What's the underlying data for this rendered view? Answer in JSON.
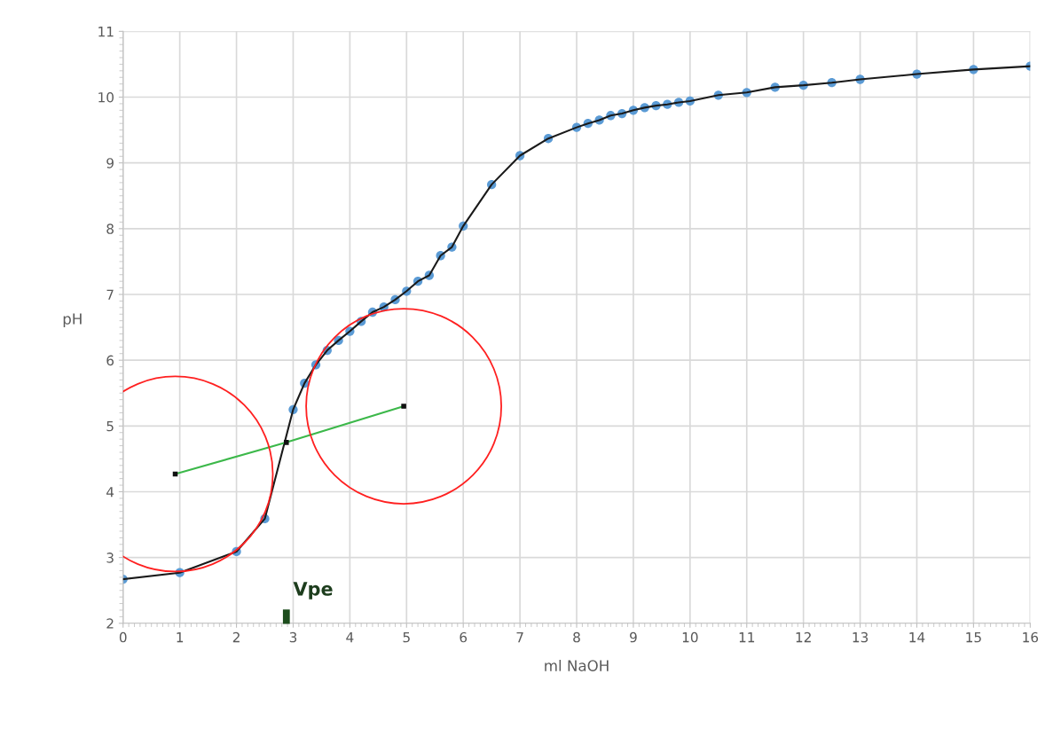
{
  "chart_data": {
    "type": "scatter",
    "xlabel": "ml NaOH",
    "ylabel": "pH",
    "x": [
      0,
      1,
      2,
      2.5,
      3,
      3.2,
      3.4,
      3.6,
      3.8,
      4,
      4.2,
      4.4,
      4.6,
      4.8,
      5,
      5.2,
      5.4,
      5.6,
      5.8,
      6,
      6.5,
      7,
      7.5,
      8,
      8.2,
      8.4,
      8.6,
      8.8,
      9,
      9.2,
      9.4,
      9.6,
      9.8,
      10,
      10.5,
      11,
      11.5,
      12,
      12.5,
      13,
      14,
      15,
      16
    ],
    "series": [
      {
        "type": "line",
        "color": "#1a1a1a",
        "marker": "none",
        "values": [
          2.67,
          2.77,
          3.09,
          3.59,
          5.25,
          5.65,
          5.93,
          6.15,
          6.3,
          6.44,
          6.59,
          6.73,
          6.81,
          6.92,
          7.05,
          7.2,
          7.29,
          7.59,
          7.72,
          8.04,
          8.67,
          9.11,
          9.37,
          9.54,
          9.6,
          9.65,
          9.72,
          9.75,
          9.8,
          9.84,
          9.87,
          9.89,
          9.92,
          9.94,
          10.03,
          10.07,
          10.15,
          10.18,
          10.22,
          10.27,
          10.35,
          10.42,
          10.47
        ]
      },
      {
        "color": "#5b9bd5",
        "marker": "circle",
        "values": [
          2.67,
          2.77,
          3.09,
          3.59,
          5.25,
          5.65,
          5.93,
          6.15,
          6.3,
          6.44,
          6.59,
          6.73,
          6.81,
          6.92,
          7.05,
          7.2,
          7.29,
          7.59,
          7.72,
          8.04,
          8.67,
          9.11,
          9.37,
          9.54,
          9.6,
          9.65,
          9.72,
          9.75,
          9.8,
          9.84,
          9.87,
          9.89,
          9.92,
          9.94,
          10.03,
          10.07,
          10.15,
          10.18,
          10.22,
          10.27,
          10.35,
          10.42,
          10.47
        ]
      },
      {
        "type": "line",
        "color": "#3cb84a",
        "marker": "square",
        "x": [
          0.92,
          2.88,
          4.95
        ],
        "values": [
          4.27,
          4.75,
          5.3
        ]
      }
    ],
    "annotations": [
      "Vpe"
    ],
    "xlim": [
      0,
      16
    ],
    "xticks": [
      0,
      1,
      2,
      3,
      4,
      5,
      6,
      7,
      8,
      9,
      10,
      11,
      12,
      13,
      14,
      15,
      16
    ],
    "ylim": [
      2,
      11
    ],
    "yticks": [
      2,
      3,
      4,
      5,
      6,
      7,
      8,
      9,
      10,
      11
    ],
    "grid": true,
    "legend": false
  }
}
